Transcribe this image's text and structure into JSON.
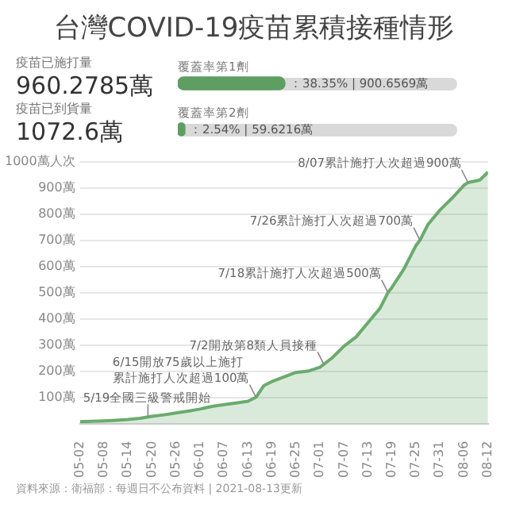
{
  "chart_data": [
    {
      "type": "bar",
      "title": "台灣COVID-19疫苗累積接種情形",
      "orientation": "horizontal",
      "categories": [
        "覆蓋率第1劑",
        "覆蓋率第2劑"
      ],
      "series": [
        {
          "color": "#5e9e61",
          "values": [
            38.35,
            2.54
          ],
          "value_labels": [
            "：38.35% | 900.6569萬",
            "：2.54% | 59.6216萬"
          ]
        }
      ],
      "xlim": [
        0,
        100
      ],
      "tick_labels": false,
      "legend": false,
      "annotations": [
        "疫苗已施打量",
        "960.2785萬",
        "疫苗已到貨量",
        "1072.6萬"
      ]
    },
    {
      "type": "area",
      "x": [
        "2021-05-02",
        "2021-05-05",
        "2021-05-08",
        "2021-05-11",
        "2021-05-14",
        "2021-05-17",
        "2021-05-20",
        "2021-05-23",
        "2021-05-26",
        "2021-05-29",
        "2021-06-01",
        "2021-06-04",
        "2021-06-07",
        "2021-06-10",
        "2021-06-13",
        "2021-06-15",
        "2021-06-17",
        "2021-06-19",
        "2021-06-22",
        "2021-06-25",
        "2021-06-28",
        "2021-07-01",
        "2021-07-04",
        "2021-07-07",
        "2021-07-10",
        "2021-07-13",
        "2021-07-16",
        "2021-07-18",
        "2021-07-19",
        "2021-07-22",
        "2021-07-25",
        "2021-07-26",
        "2021-07-28",
        "2021-07-31",
        "2021-08-03",
        "2021-08-06",
        "2021-08-07",
        "2021-08-10",
        "2021-08-12"
      ],
      "series": [
        {
          "color": "#6aab6d",
          "values": [
            7,
            8,
            10,
            12,
            15,
            20,
            27,
            33,
            40,
            47,
            55,
            65,
            72,
            78,
            85,
            100,
            145,
            160,
            178,
            195,
            200,
            215,
            250,
            295,
            330,
            385,
            440,
            500,
            520,
            590,
            680,
            700,
            760,
            815,
            860,
            910,
            920,
            930,
            960
          ]
        }
      ],
      "xlim": [
        "2021-05-02",
        "2021-08-12"
      ],
      "xticks": [
        {
          "value": "2021-05-02",
          "label": "05-02"
        },
        {
          "value": "2021-05-08",
          "label": "05-08"
        },
        {
          "value": "2021-05-14",
          "label": "05-14"
        },
        {
          "value": "2021-05-20",
          "label": "05-20"
        },
        {
          "value": "2021-05-26",
          "label": "05-26"
        },
        {
          "value": "2021-06-01",
          "label": "06-01"
        },
        {
          "value": "2021-06-07",
          "label": "06-07"
        },
        {
          "value": "2021-06-13",
          "label": "06-13"
        },
        {
          "value": "2021-06-19",
          "label": "06-19"
        },
        {
          "value": "2021-06-25",
          "label": "06-25"
        },
        {
          "value": "2021-07-01",
          "label": "07-01"
        },
        {
          "value": "2021-07-07",
          "label": "07-07"
        },
        {
          "value": "2021-07-13",
          "label": "07-13"
        },
        {
          "value": "2021-07-19",
          "label": "07-19"
        },
        {
          "value": "2021-07-25",
          "label": "07-25"
        },
        {
          "value": "2021-07-31",
          "label": "07-31"
        },
        {
          "value": "2021-08-06",
          "label": "08-06"
        },
        {
          "value": "2021-08-12",
          "label": "08-12"
        }
      ],
      "ylim": [
        0,
        1000
      ],
      "yticks": [
        {
          "value": 0,
          "label": null
        },
        {
          "value": 100,
          "label": "100萬"
        },
        {
          "value": 200,
          "label": "200萬"
        },
        {
          "value": 300,
          "label": "300萬"
        },
        {
          "value": 400,
          "label": "400萬"
        },
        {
          "value": 500,
          "label": "500萬"
        },
        {
          "value": 600,
          "label": "600萬"
        },
        {
          "value": 700,
          "label": "700萬"
        },
        {
          "value": 800,
          "label": "800萬"
        },
        {
          "value": 900,
          "label": "900萬"
        },
        {
          "value": 1000,
          "label": "1000萬人次"
        }
      ],
      "grid": "y",
      "legend": false,
      "annotations": [
        {
          "text": "5/19全國三級警戒開始",
          "x": "2021-05-19",
          "y": 25
        },
        {
          "text": "6/15開放75歲以上施打",
          "x": "2021-06-15",
          "y": 100
        },
        {
          "text": "累計施打人次超過100萬",
          "x": "2021-06-15",
          "y": 100
        },
        {
          "text": "7/2開放第8類人員接種",
          "x": "2021-07-02",
          "y": 225
        },
        {
          "text": "7/18累計施打人次超過500萬",
          "x": "2021-07-18",
          "y": 500
        },
        {
          "text": "7/26累計施打人次超過700萬",
          "x": "2021-07-26",
          "y": 700
        },
        {
          "text": "8/07累計施打人次超過900萬",
          "x": "2021-08-07",
          "y": 920
        },
        "資料來源：衛福部：每週日不公布資料 | 2021-08-13更新"
      ]
    }
  ]
}
